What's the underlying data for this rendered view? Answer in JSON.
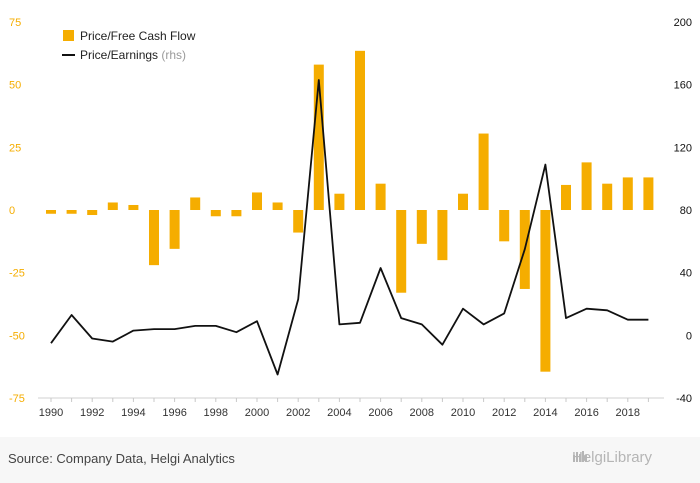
{
  "chart_data": {
    "type": "bar+line",
    "x": [
      1990,
      1991,
      1992,
      1993,
      1994,
      1995,
      1996,
      1997,
      1998,
      1999,
      2000,
      2001,
      2002,
      2003,
      2004,
      2005,
      2006,
      2007,
      2008,
      2009,
      2010,
      2011,
      2012,
      2013,
      2014,
      2015,
      2016,
      2017,
      2018,
      2019
    ],
    "series": [
      {
        "name": "Price/Free Cash Flow",
        "type": "bar",
        "axis": "left",
        "color": "#f5ad00",
        "values": [
          -1.5,
          -1.5,
          -2,
          3,
          2,
          -22,
          -15.5,
          5,
          -2.5,
          -2.5,
          7,
          3,
          -9,
          58,
          6.5,
          63.5,
          10.5,
          -33,
          -13.5,
          -20,
          6.5,
          30.5,
          -12.5,
          -31.5,
          -64.5,
          10,
          19,
          10.5,
          13,
          13
        ]
      },
      {
        "name": "Price/Earnings",
        "name_note": "(rhs)",
        "type": "line",
        "axis": "right",
        "color": "#111111",
        "values": [
          -5,
          13,
          -2,
          -4,
          3,
          4,
          4,
          6,
          6,
          2,
          9,
          -25,
          23,
          163,
          7,
          8,
          43,
          11,
          7,
          -6,
          17,
          7,
          14,
          55,
          109,
          11,
          17,
          16,
          10,
          10
        ]
      }
    ],
    "left_axis": {
      "ylim": [
        -75,
        75
      ],
      "ticks": [
        75,
        50,
        25,
        0,
        -25,
        -50,
        -75
      ]
    },
    "right_axis": {
      "ylim": [
        -40,
        200
      ],
      "ticks": [
        200,
        160,
        120,
        80,
        40,
        0,
        -40
      ]
    },
    "x_tick_labels": [
      "1990",
      "1992",
      "1994",
      "1996",
      "1998",
      "2000",
      "2002",
      "2004",
      "2006",
      "2008",
      "2010",
      "2012",
      "2014",
      "2016",
      "2018"
    ],
    "legend_position": "top-left",
    "colors": {
      "bar": "#f5ad00",
      "line": "#111111",
      "left_tick": "#f5ad00",
      "right_tick": "#111111"
    }
  },
  "footer": {
    "source": "Source: Company Data, Helgi Analytics",
    "logo_text": "HelgiLibrary"
  }
}
